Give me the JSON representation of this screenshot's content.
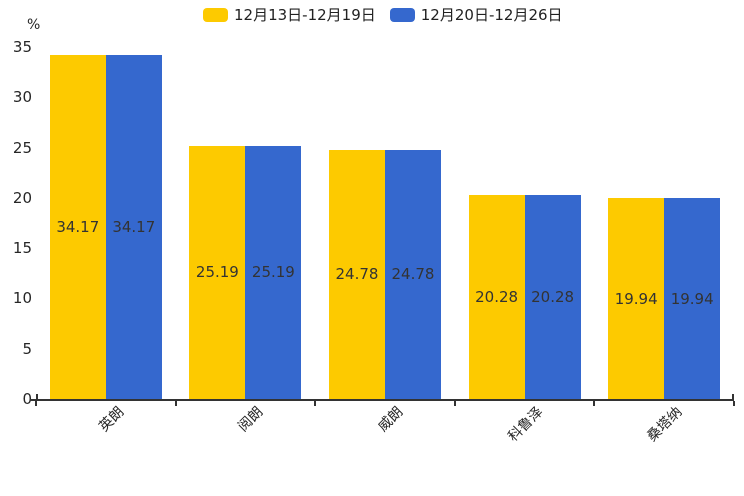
{
  "chart_data": {
    "type": "bar",
    "title": "",
    "categories": [
      "英朗",
      "阅朗",
      "威朗",
      "科鲁泽",
      "桑塔纳"
    ],
    "series": [
      {
        "name": "12月13日-12月19日",
        "color": "#FDCA00",
        "values": [
          34.17,
          25.19,
          24.78,
          20.28,
          19.94
        ]
      },
      {
        "name": "12月20日-12月26日",
        "color": "#3568CE",
        "values": [
          34.17,
          25.19,
          24.78,
          20.28,
          19.94
        ]
      }
    ],
    "value_labels": [
      [
        "34.17",
        "25.19",
        "24.78",
        "20.28",
        "19.94"
      ],
      [
        "34.17",
        "25.19",
        "24.78",
        "20.28",
        "19.94"
      ]
    ],
    "ylabel": "%",
    "ylim": [
      0,
      35
    ],
    "yticks": [
      "0",
      "5",
      "10",
      "15",
      "20",
      "25",
      "30",
      "35"
    ],
    "grid": false,
    "legend_position": "top",
    "value_label_position": "inside-center"
  }
}
